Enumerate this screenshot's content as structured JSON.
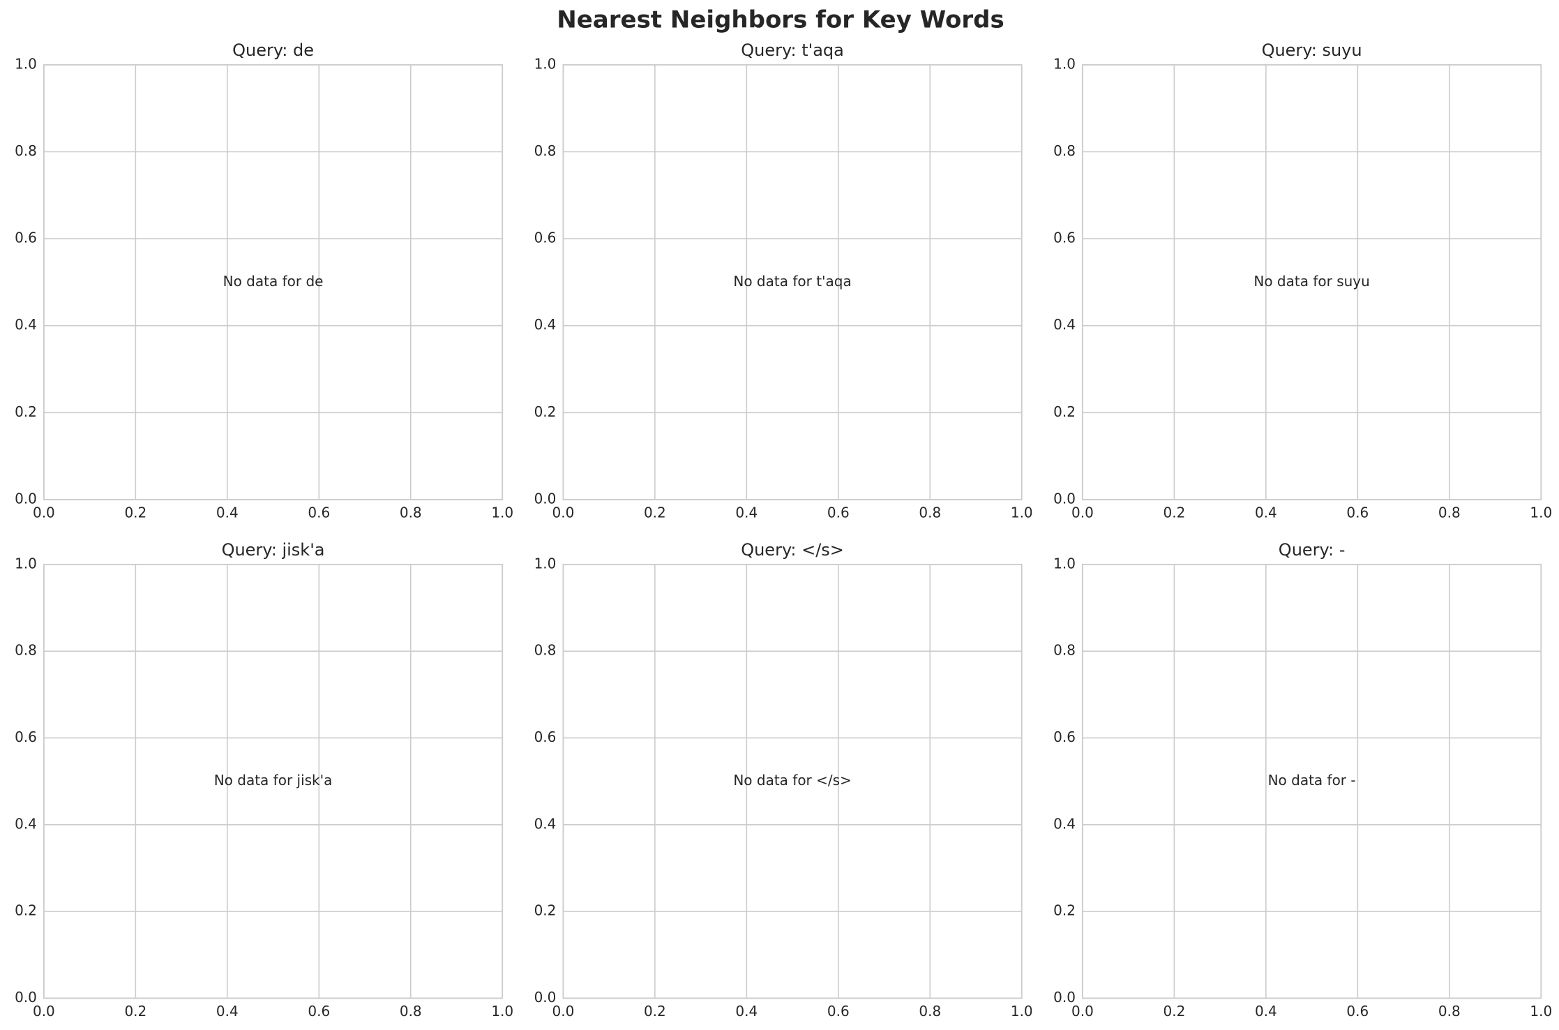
{
  "title": "Nearest Neighbors for Key Words",
  "chart_data": [
    {
      "type": "scatter",
      "title": "Query: de",
      "annotation": "No data for de",
      "xlim": [
        0,
        1
      ],
      "ylim": [
        0,
        1
      ],
      "xticks": [
        {
          "value": 0,
          "label": "0.0"
        },
        0.2,
        0.4,
        0.6,
        0.8,
        {
          "value": 1,
          "label": "1.0"
        }
      ],
      "yticks": [
        {
          "value": 0,
          "label": "0.0"
        },
        0.2,
        0.4,
        0.6,
        0.8,
        {
          "value": 1,
          "label": "1.0"
        }
      ],
      "grid": true
    },
    {
      "type": "scatter",
      "title": "Query: t'aqa",
      "annotation": "No data for t'aqa",
      "xlim": [
        0,
        1
      ],
      "ylim": [
        0,
        1
      ],
      "xticks": [
        {
          "value": 0,
          "label": "0.0"
        },
        0.2,
        0.4,
        0.6,
        0.8,
        {
          "value": 1,
          "label": "1.0"
        }
      ],
      "yticks": [
        {
          "value": 0,
          "label": "0.0"
        },
        0.2,
        0.4,
        0.6,
        0.8,
        {
          "value": 1,
          "label": "1.0"
        }
      ],
      "grid": true
    },
    {
      "type": "scatter",
      "title": "Query: suyu",
      "annotation": "No data for suyu",
      "xlim": [
        0,
        1
      ],
      "ylim": [
        0,
        1
      ],
      "xticks": [
        {
          "value": 0,
          "label": "0.0"
        },
        0.2,
        0.4,
        0.6,
        0.8,
        {
          "value": 1,
          "label": "1.0"
        }
      ],
      "yticks": [
        {
          "value": 0,
          "label": "0.0"
        },
        0.2,
        0.4,
        0.6,
        0.8,
        {
          "value": 1,
          "label": "1.0"
        }
      ],
      "grid": true
    },
    {
      "type": "scatter",
      "title": "Query: jisk'a",
      "annotation": "No data for jisk'a",
      "xlim": [
        0,
        1
      ],
      "ylim": [
        0,
        1
      ],
      "xticks": [
        {
          "value": 0,
          "label": "0.0"
        },
        0.2,
        0.4,
        0.6,
        0.8,
        {
          "value": 1,
          "label": "1.0"
        }
      ],
      "yticks": [
        {
          "value": 0,
          "label": "0.0"
        },
        0.2,
        0.4,
        0.6,
        0.8,
        {
          "value": 1,
          "label": "1.0"
        }
      ],
      "grid": true
    },
    {
      "type": "scatter",
      "title": "Query: </s>",
      "annotation": "No data for </s>",
      "xlim": [
        0,
        1
      ],
      "ylim": [
        0,
        1
      ],
      "xticks": [
        {
          "value": 0,
          "label": "0.0"
        },
        0.2,
        0.4,
        0.6,
        0.8,
        {
          "value": 1,
          "label": "1.0"
        }
      ],
      "yticks": [
        {
          "value": 0,
          "label": "0.0"
        },
        0.2,
        0.4,
        0.6,
        0.8,
        {
          "value": 1,
          "label": "1.0"
        }
      ],
      "grid": true
    },
    {
      "type": "scatter",
      "title": "Query: -",
      "annotation": "No data for -",
      "xlim": [
        0,
        1
      ],
      "ylim": [
        0,
        1
      ],
      "xticks": [
        {
          "value": 0,
          "label": "0.0"
        },
        0.2,
        0.4,
        0.6,
        0.8,
        {
          "value": 1,
          "label": "1.0"
        }
      ],
      "yticks": [
        {
          "value": 0,
          "label": "0.0"
        },
        0.2,
        0.4,
        0.6,
        0.8,
        {
          "value": 1,
          "label": "1.0"
        }
      ],
      "grid": true
    }
  ]
}
